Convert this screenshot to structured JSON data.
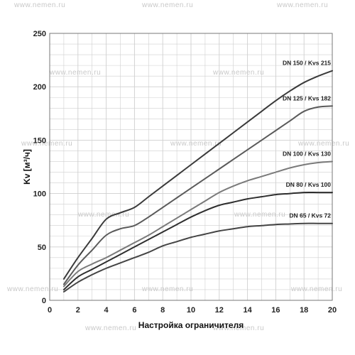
{
  "chart_data": {
    "type": "line",
    "title": "",
    "xlabel": "Настройка ограничителя",
    "ylabel": "Kv [м³/ч]",
    "xlim": [
      0,
      20
    ],
    "ylim": [
      0,
      250
    ],
    "x_ticks": [
      0,
      2,
      4,
      6,
      8,
      10,
      12,
      14,
      16,
      18,
      20
    ],
    "y_ticks": [
      0,
      50,
      100,
      150,
      200,
      250
    ],
    "grid": true,
    "legend": "labels at line ends (right)",
    "series": [
      {
        "name": "DN 150 / Kvs 215",
        "color": "#3a3a3a",
        "x": [
          1,
          2,
          3,
          4,
          5,
          6,
          7,
          8,
          9,
          10,
          11,
          12,
          13,
          14,
          15,
          16,
          17,
          18,
          19,
          20
        ],
        "y": [
          20,
          40,
          58,
          76,
          82,
          87,
          97,
          107,
          117,
          127,
          137,
          147,
          157,
          167,
          177,
          187,
          196,
          204,
          210,
          215
        ]
      },
      {
        "name": "DN 125 / Kvs 182",
        "color": "#5a5a5a",
        "x": [
          1,
          2,
          3,
          4,
          5,
          6,
          7,
          8,
          9,
          10,
          11,
          12,
          13,
          14,
          15,
          16,
          17,
          18,
          19,
          20
        ],
        "y": [
          15,
          33,
          47,
          61,
          67,
          70,
          78,
          87,
          96,
          105,
          114,
          123,
          132,
          141,
          150,
          159,
          168,
          177,
          181,
          182
        ]
      },
      {
        "name": "DN 100 / Kvs 130",
        "color": "#7a7a7a",
        "x": [
          1,
          2,
          3,
          4,
          5,
          6,
          7,
          8,
          9,
          10,
          11,
          12,
          13,
          14,
          15,
          16,
          17,
          18,
          19,
          20
        ],
        "y": [
          13,
          27,
          34,
          40,
          47,
          54,
          61,
          69,
          77,
          85,
          93,
          101,
          107,
          112,
          116,
          120,
          124,
          127,
          129,
          130
        ]
      },
      {
        "name": "DN 80 / Kvs 100",
        "color": "#2e2e2e",
        "x": [
          1,
          2,
          3,
          4,
          5,
          6,
          7,
          8,
          9,
          10,
          11,
          12,
          13,
          14,
          15,
          16,
          17,
          18,
          19,
          20
        ],
        "y": [
          10,
          22,
          29,
          36,
          43,
          50,
          57,
          64,
          71,
          78,
          84,
          89,
          92,
          95,
          97,
          99,
          100,
          101,
          101,
          101
        ]
      },
      {
        "name": "DN 65 / Kvs 72",
        "color": "#444444",
        "x": [
          1,
          2,
          3,
          4,
          5,
          6,
          7,
          8,
          9,
          10,
          11,
          12,
          13,
          14,
          15,
          16,
          17,
          18,
          19,
          20
        ],
        "y": [
          8,
          17,
          24,
          30,
          35,
          40,
          45,
          51,
          55,
          59,
          62,
          65,
          67,
          69,
          70,
          71,
          71.5,
          72,
          72,
          72
        ]
      }
    ]
  },
  "watermark": "www.nemen.ru"
}
